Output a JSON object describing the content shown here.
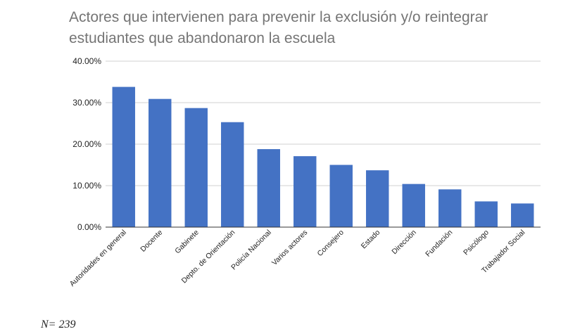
{
  "chart_data": {
    "type": "bar",
    "title_line1": "Actores que intervienen para prevenir la exclusión  y/o reintegrar",
    "title_line2": "estudiantes que abandonaron la escuela",
    "categories": [
      "Autoridades en general",
      "Docente",
      "Gabinete",
      "Depto. de Orientación",
      "Policía Nacional",
      "Varios actores",
      "Consejero",
      "Estado",
      "Dirección",
      "Fundación",
      "Psicólogo",
      "Trabajador Social"
    ],
    "values": [
      33.8,
      30.9,
      28.7,
      25.3,
      18.8,
      17.1,
      15.0,
      13.7,
      10.4,
      9.1,
      6.2,
      5.7
    ],
    "ylim": [
      0,
      40
    ],
    "yticks": [
      "0.00%",
      "10.00%",
      "20.00%",
      "30.00%",
      "40.00%"
    ],
    "bar_color": "#4472c4",
    "grid": true,
    "note": "N= 239"
  }
}
